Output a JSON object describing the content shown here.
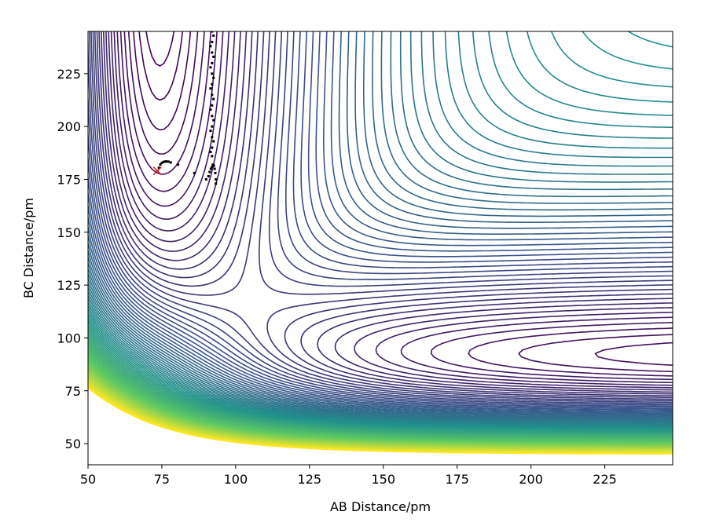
{
  "chart_data": {
    "type": "contour",
    "title": "",
    "xlabel": "AB Distance/pm",
    "ylabel": "BC Distance/pm",
    "xlim": [
      50,
      248
    ],
    "ylim": [
      40,
      245
    ],
    "xticks": [
      50,
      75,
      100,
      125,
      150,
      175,
      200,
      225
    ],
    "yticks": [
      50,
      75,
      100,
      125,
      150,
      175,
      200,
      225
    ],
    "xtick_labels": [
      "50",
      "75",
      "100",
      "125",
      "150",
      "175",
      "200",
      "225"
    ],
    "ytick_labels": [
      "50",
      "75",
      "100",
      "125",
      "150",
      "175",
      "200",
      "225"
    ],
    "grid": false,
    "legend": "none",
    "colormap": "viridis",
    "colormap_stops": [
      "#440154",
      "#3b528b",
      "#21918c",
      "#5ec962",
      "#fde725"
    ],
    "trajectory": {
      "color": "#000000",
      "points": [
        [
          73.5,
          179
        ],
        [
          74,
          180.5
        ],
        [
          74.5,
          182
        ],
        [
          75,
          182.8
        ],
        [
          75.5,
          183.2
        ],
        [
          76,
          183.4
        ],
        [
          76.5,
          183.5
        ],
        [
          77.2,
          183.4
        ],
        [
          78,
          183
        ],
        [
          80.5,
          182
        ],
        [
          86,
          178
        ],
        [
          90,
          175
        ],
        [
          90.8,
          176.5
        ],
        [
          91.2,
          178.5
        ],
        [
          91.6,
          180
        ],
        [
          92,
          181
        ],
        [
          92.3,
          182
        ],
        [
          92.6,
          181.5
        ],
        [
          92.9,
          180
        ],
        [
          93.1,
          178
        ],
        [
          93.3,
          175
        ],
        [
          93.3,
          173
        ],
        [
          92,
          186
        ],
        [
          92,
          190
        ],
        [
          92,
          195
        ],
        [
          92,
          200
        ],
        [
          92,
          205
        ],
        [
          92,
          210
        ],
        [
          92,
          215
        ],
        [
          92,
          220
        ],
        [
          92,
          225
        ],
        [
          92,
          230
        ],
        [
          92,
          235
        ],
        [
          92,
          240
        ],
        [
          92,
          245
        ],
        [
          91.5,
          188
        ],
        [
          91.5,
          198
        ],
        [
          91.5,
          208
        ],
        [
          91.5,
          218
        ],
        [
          91.5,
          228
        ],
        [
          91.5,
          238
        ],
        [
          92.5,
          193
        ],
        [
          92.5,
          203
        ],
        [
          92.5,
          213
        ],
        [
          92.5,
          223
        ],
        [
          92.5,
          233
        ],
        [
          92.5,
          243
        ]
      ]
    },
    "start_marker": {
      "x": 73.5,
      "y": 179,
      "symbol": "x",
      "color": "#d62728"
    }
  }
}
